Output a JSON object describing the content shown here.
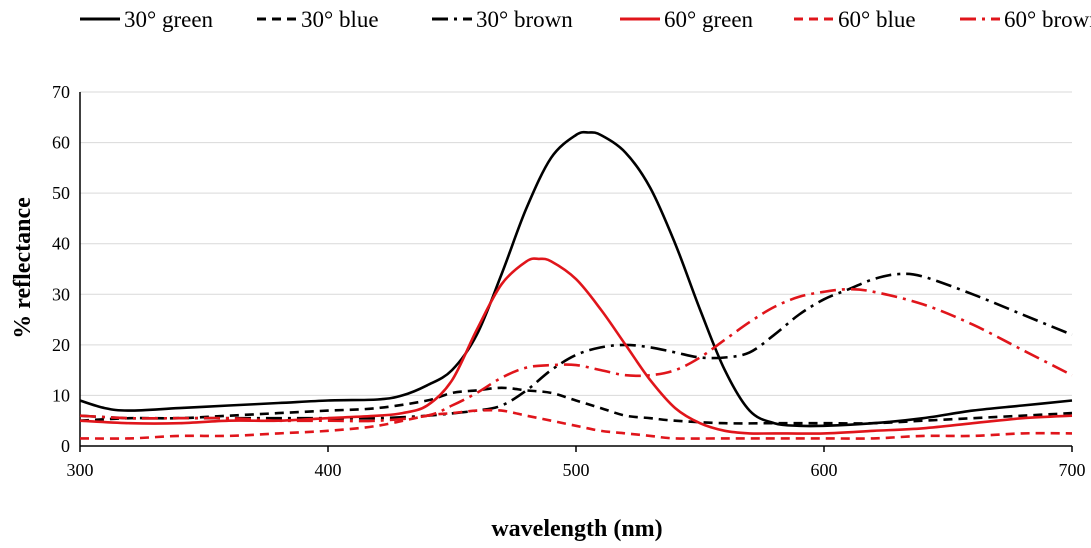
{
  "chart_data": {
    "type": "line",
    "title": "",
    "xlabel": "wavelength (nm)",
    "ylabel": "% reflectance",
    "xlim": [
      300,
      700
    ],
    "ylim": [
      0,
      70
    ],
    "xticks": [
      300,
      400,
      500,
      600,
      700
    ],
    "yticks": [
      0,
      10,
      20,
      30,
      40,
      50,
      60,
      70
    ],
    "grid": "horizontal",
    "legend_position": "top",
    "series": [
      {
        "name": "30° green",
        "color": "#000000",
        "dash": "solid",
        "x": [
          300,
          310,
          320,
          340,
          360,
          380,
          400,
          420,
          430,
          440,
          450,
          460,
          470,
          480,
          490,
          500,
          505,
          510,
          520,
          530,
          540,
          550,
          560,
          570,
          580,
          590,
          600,
          620,
          640,
          660,
          680,
          700
        ],
        "y": [
          9,
          7.5,
          7,
          7.5,
          8,
          8.5,
          9,
          9.2,
          10,
          12,
          15,
          22,
          34,
          47,
          57,
          61.5,
          62,
          61.5,
          58,
          51,
          40,
          27,
          15,
          7,
          4.5,
          4,
          4,
          4.5,
          5.5,
          7,
          8,
          9
        ]
      },
      {
        "name": "30° blue",
        "color": "#000000",
        "dash": "dashed",
        "x": [
          300,
          320,
          340,
          360,
          380,
          400,
          420,
          440,
          450,
          460,
          470,
          480,
          490,
          500,
          510,
          520,
          530,
          540,
          560,
          580,
          600,
          620,
          640,
          660,
          680,
          700
        ],
        "y": [
          5,
          5.5,
          5.5,
          6,
          6.5,
          7,
          7.5,
          9,
          10.5,
          11,
          11.5,
          11,
          10.5,
          9,
          7.5,
          6,
          5.5,
          5,
          4.5,
          4.5,
          4.5,
          4.5,
          5,
          5.5,
          6,
          6.5
        ]
      },
      {
        "name": "30° brown",
        "color": "#000000",
        "dash": "dashdot",
        "x": [
          300,
          320,
          340,
          360,
          380,
          400,
          420,
          440,
          460,
          470,
          480,
          490,
          500,
          510,
          520,
          530,
          540,
          550,
          560,
          570,
          580,
          590,
          600,
          610,
          620,
          630,
          640,
          660,
          680,
          700
        ],
        "y": [
          6,
          5.5,
          5.5,
          5.5,
          5.5,
          5.5,
          5.5,
          6,
          7,
          8,
          11,
          15,
          18,
          19.5,
          20,
          19.5,
          18.5,
          17.5,
          17.5,
          18.5,
          22,
          26,
          29,
          31,
          33,
          34,
          33.5,
          30,
          26,
          22
        ]
      },
      {
        "name": "60° green",
        "color": "#e0151b",
        "dash": "solid",
        "x": [
          300,
          320,
          340,
          360,
          380,
          400,
          420,
          430,
          440,
          450,
          460,
          470,
          480,
          485,
          490,
          500,
          510,
          520,
          530,
          540,
          550,
          560,
          570,
          580,
          600,
          620,
          640,
          660,
          680,
          700
        ],
        "y": [
          5,
          4.5,
          4.5,
          5,
          5,
          5.5,
          6,
          6.5,
          8,
          13,
          23,
          32,
          36.5,
          37,
          36.5,
          33,
          27,
          20,
          13,
          7.5,
          4.5,
          3,
          2.5,
          2.5,
          2.5,
          3,
          3.5,
          4.5,
          5.5,
          6
        ]
      },
      {
        "name": "60° blue",
        "color": "#e0151b",
        "dash": "dashed",
        "x": [
          300,
          320,
          340,
          360,
          380,
          400,
          420,
          440,
          450,
          460,
          470,
          480,
          490,
          500,
          510,
          520,
          530,
          540,
          560,
          580,
          600,
          620,
          640,
          660,
          680,
          700
        ],
        "y": [
          1.5,
          1.5,
          2,
          2,
          2.5,
          3,
          4,
          6,
          6.5,
          7,
          7,
          6,
          5,
          4,
          3,
          2.5,
          2,
          1.5,
          1.5,
          1.5,
          1.5,
          1.5,
          2,
          2,
          2.5,
          2.5
        ]
      },
      {
        "name": "60° brown",
        "color": "#e0151b",
        "dash": "dashdot",
        "x": [
          300,
          320,
          340,
          360,
          380,
          400,
          420,
          440,
          450,
          460,
          470,
          480,
          490,
          500,
          510,
          520,
          530,
          540,
          550,
          560,
          570,
          580,
          590,
          600,
          610,
          620,
          640,
          660,
          680,
          700
        ],
        "y": [
          6,
          5.5,
          5.5,
          5.5,
          5,
          5,
          5,
          6,
          8,
          10.5,
          13.5,
          15.5,
          16,
          16,
          15,
          14,
          14,
          15,
          17.5,
          21,
          24.5,
          27.5,
          29.5,
          30.5,
          31,
          30.5,
          28,
          24,
          19,
          14
        ]
      }
    ]
  }
}
